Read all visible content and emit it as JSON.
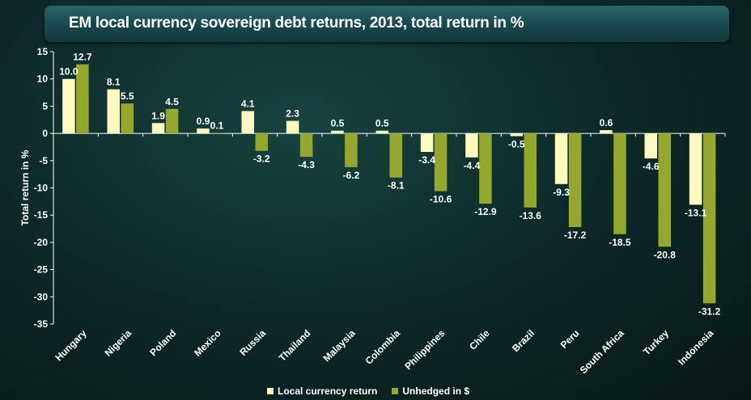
{
  "colors": {
    "local": "#fdfabf",
    "unhedged": "#95a82d",
    "text": "#ffffff"
  },
  "chart_data": {
    "type": "bar",
    "title": "EM local currency sovereign debt returns, 2013, total return in %",
    "xlabel": "",
    "ylabel": "Total return in %",
    "ylim": [
      -35,
      15
    ],
    "yticks": [
      15,
      10,
      5,
      0,
      -5,
      -10,
      -15,
      -20,
      -25,
      -30,
      -35
    ],
    "grid": false,
    "legend_position": "bottom",
    "categories": [
      "Hungary",
      "Nigeria",
      "Poland",
      "Mexico",
      "Russia",
      "Thailand",
      "Malaysia",
      "Colombia",
      "Philippines",
      "Chile",
      "Brazil",
      "Peru",
      "South Africa",
      "Turkey",
      "Indonesia"
    ],
    "series": [
      {
        "name": "Local currency return",
        "values": [
          10.0,
          8.1,
          1.9,
          0.9,
          4.1,
          2.3,
          0.5,
          0.5,
          -3.4,
          -4.4,
          -0.5,
          -9.3,
          0.6,
          -4.6,
          -13.1
        ],
        "labels": [
          "10.0",
          "8.1",
          "1.9",
          "0.9",
          "4.1",
          "2.3",
          "0.5",
          "0.5",
          "-3.4",
          "-4.4",
          "-0.5",
          "-9.3",
          "0.6",
          "-4.6",
          "-13.1"
        ]
      },
      {
        "name": "Unhedged in $",
        "values": [
          12.7,
          5.5,
          4.5,
          0.1,
          -3.2,
          -4.3,
          -6.2,
          -8.1,
          -10.6,
          -12.9,
          -13.6,
          -17.2,
          -18.5,
          -20.8,
          -31.2
        ],
        "labels": [
          "12.7",
          "5.5",
          "4.5",
          "0.1",
          "-3.2",
          "-4.3",
          "-6.2",
          "-8.1",
          "-10.6",
          "-12.9",
          "-13.6",
          "-17.2",
          "-18.5",
          "-20.8",
          "-31.2"
        ]
      }
    ]
  }
}
